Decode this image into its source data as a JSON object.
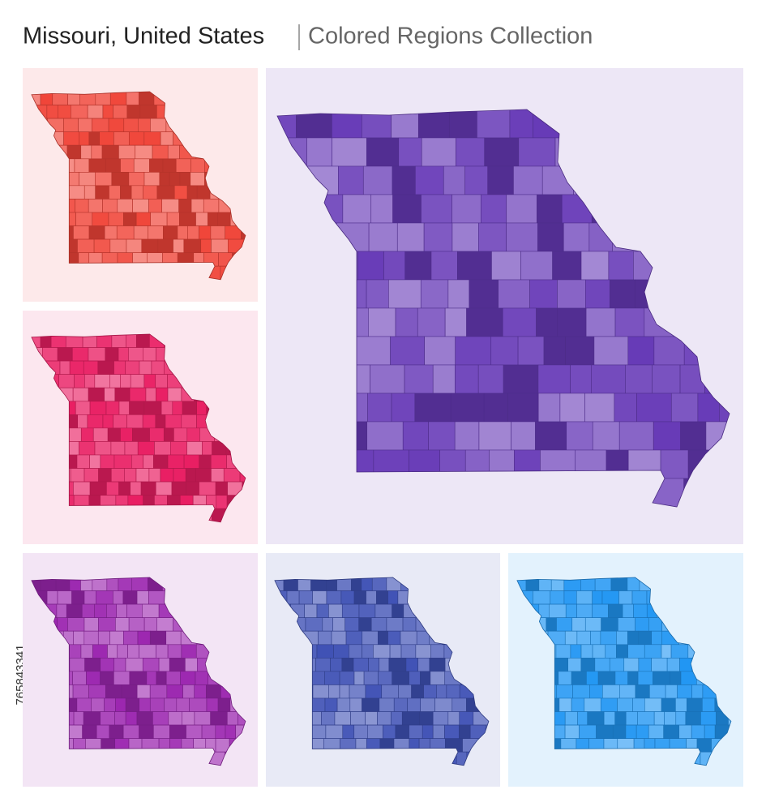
{
  "header": {
    "title": "Missouri, United States",
    "subtitle": "Colored Regions Collection"
  },
  "stock_id": "765843341"
}
